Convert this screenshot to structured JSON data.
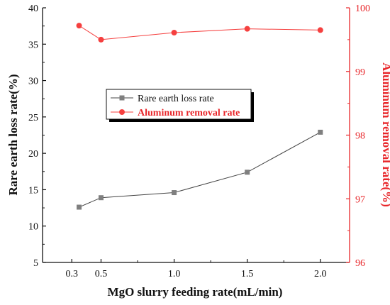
{
  "chart_data": {
    "type": "line",
    "xlabel": "MgO slurry feeding rate(mL/min)",
    "x_ticks": [
      "0.3",
      "0.5",
      "1.0",
      "1.5",
      "2.0"
    ],
    "xlim": [
      0.1,
      2.2
    ],
    "x": [
      0.35,
      0.5,
      1.0,
      1.5,
      2.0
    ],
    "y_left": {
      "label": "Rare earth loss rate(%)",
      "lim": [
        5,
        40
      ],
      "ticks": [
        "5",
        "10",
        "15",
        "20",
        "25",
        "30",
        "35",
        "40"
      ],
      "color": "#111111"
    },
    "y_right": {
      "label": "Aluminum removal rate(%)",
      "lim": [
        96,
        100
      ],
      "ticks": [
        "96",
        "97",
        "98",
        "99",
        "100"
      ],
      "color": "#e8262a"
    },
    "series": [
      {
        "name": "Rare earth loss rate",
        "axis": "left",
        "marker": "square",
        "color": "#7f7f7f",
        "line_color": "#444444",
        "values": [
          12.6,
          13.9,
          14.6,
          17.4,
          22.9
        ]
      },
      {
        "name": "Aluminum removal rate",
        "axis": "right",
        "marker": "circle",
        "color": "#f5403f",
        "line_color": "#f5403f",
        "values": [
          99.72,
          99.5,
          99.61,
          99.67,
          99.65
        ]
      }
    ],
    "legend_position": "center"
  }
}
